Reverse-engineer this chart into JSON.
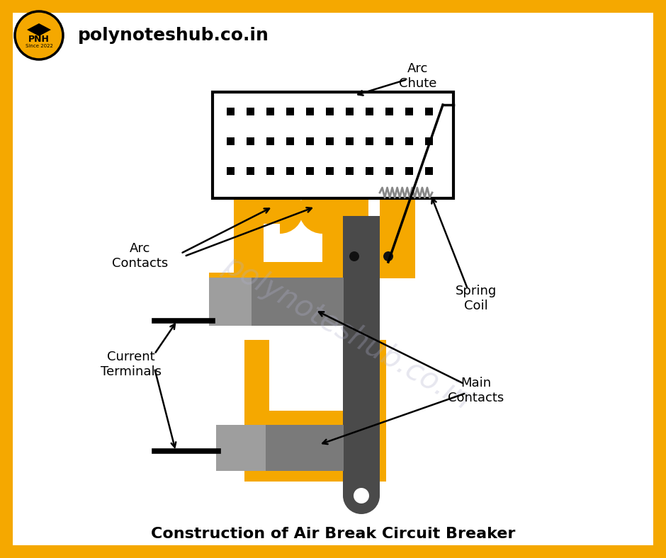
{
  "title": "Construction of Air Break Circuit Breaker",
  "bg_color": "#ffffff",
  "border_color": "#F5A800",
  "border_width": 18,
  "yellow": "#F5A800",
  "dark_gray": "#4a4a4a",
  "mid_gray": "#7a7a7a",
  "light_gray": "#9e9e9e",
  "black": "#000000",
  "white": "#ffffff",
  "watermark": "polynoteshub.co.in",
  "header_text": "polynoteshub.co.in",
  "arc_chute_label": "Arc\nChute",
  "arc_contacts_label": "Arc\nContacts",
  "spring_coil_label": "Spring\nCoil",
  "main_contacts_label": "Main\nContacts",
  "current_terminals_label": "Current\nTerminals",
  "logo_text": "PNH"
}
